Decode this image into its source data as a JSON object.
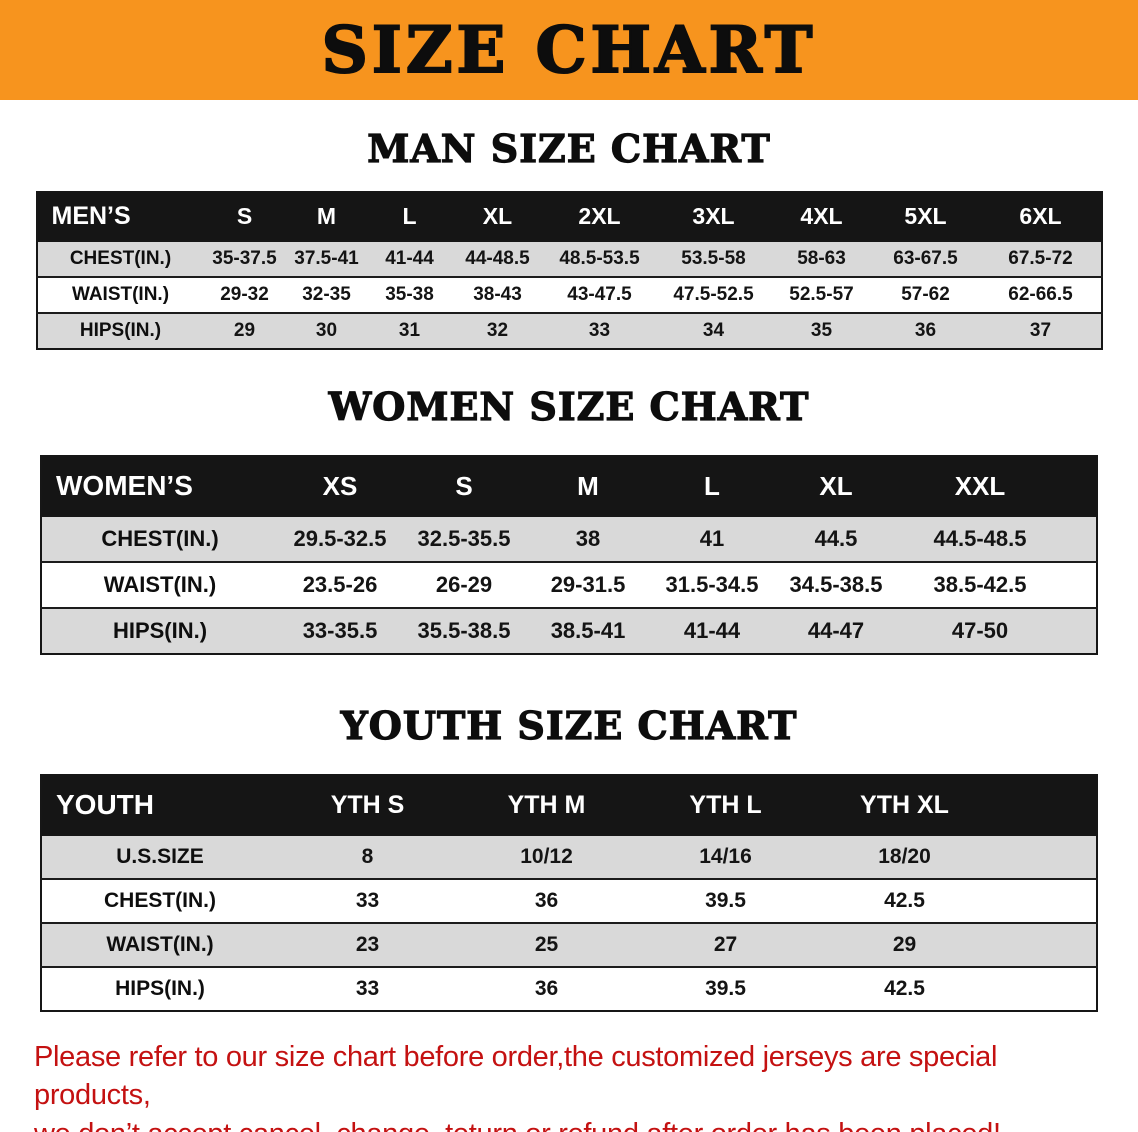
{
  "colors": {
    "banner-bg": "#f7941e",
    "banner-text": "#0d0d0d",
    "table-header-bg": "#151515",
    "table-header-text": "#ffffff",
    "row-stripe": "#d9d9d9",
    "footer-text": "#c41111"
  },
  "banner": {
    "title": "SIZE CHART"
  },
  "sections": [
    {
      "heading": "MAN SIZE CHART",
      "table": {
        "header_label": "MEN’S",
        "columns": [
          "S",
          "M",
          "L",
          "XL",
          "2XL",
          "3XL",
          "4XL",
          "5XL",
          "6XL"
        ],
        "rows": [
          {
            "label": "CHEST(IN.)",
            "values": [
              "35-37.5",
              "37.5-41",
              "41-44",
              "44-48.5",
              "48.5-53.5",
              "53.5-58",
              "58-63",
              "63-67.5",
              "67.5-72"
            ]
          },
          {
            "label": "WAIST(IN.)",
            "values": [
              "29-32",
              "32-35",
              "35-38",
              "38-43",
              "43-47.5",
              "47.5-52.5",
              "52.5-57",
              "57-62",
              "62-66.5"
            ]
          },
          {
            "label": "HIPS(IN.)",
            "values": [
              "29",
              "30",
              "31",
              "32",
              "33",
              "34",
              "35",
              "36",
              "37"
            ]
          }
        ]
      }
    },
    {
      "heading": "WOMEN SIZE CHART",
      "table": {
        "header_label": "WOMEN’S",
        "columns": [
          "XS",
          "S",
          "M",
          "L",
          "XL",
          "XXL"
        ],
        "rows": [
          {
            "label": "CHEST(IN.)",
            "values": [
              "29.5-32.5",
              "32.5-35.5",
              "38",
              "41",
              "44.5",
              "44.5-48.5"
            ]
          },
          {
            "label": "WAIST(IN.)",
            "values": [
              "23.5-26",
              "26-29",
              "29-31.5",
              "31.5-34.5",
              "34.5-38.5",
              "38.5-42.5"
            ]
          },
          {
            "label": "HIPS(IN.)",
            "values": [
              "33-35.5",
              "35.5-38.5",
              "38.5-41",
              "41-44",
              "44-47",
              "47-50"
            ]
          }
        ]
      }
    },
    {
      "heading": "YOUTH SIZE CHART",
      "table": {
        "header_label": "YOUTH",
        "columns": [
          "YTH S",
          "YTH M",
          "YTH L",
          "YTH XL"
        ],
        "rows": [
          {
            "label": "U.S.SIZE",
            "values": [
              "8",
              "10/12",
              "14/16",
              "18/20"
            ]
          },
          {
            "label": "CHEST(IN.)",
            "values": [
              "33",
              "36",
              "39.5",
              "42.5"
            ]
          },
          {
            "label": "WAIST(IN.)",
            "values": [
              "23",
              "25",
              "27",
              "29"
            ]
          },
          {
            "label": "HIPS(IN.)",
            "values": [
              "33",
              "36",
              "39.5",
              "42.5"
            ]
          }
        ]
      }
    }
  ],
  "footer": {
    "line1": "Please refer to our size chart before order,the customized jerseys are special products,",
    "line2": "we don’t accept cancel, change, teturn or refund after order has been placed!"
  },
  "chart_data": [
    {
      "type": "table",
      "title": "MAN SIZE CHART",
      "columns": [
        "MEN’S",
        "S",
        "M",
        "L",
        "XL",
        "2XL",
        "3XL",
        "4XL",
        "5XL",
        "6XL"
      ],
      "rows": [
        [
          "CHEST(IN.)",
          "35-37.5",
          "37.5-41",
          "41-44",
          "44-48.5",
          "48.5-53.5",
          "53.5-58",
          "58-63",
          "63-67.5",
          "67.5-72"
        ],
        [
          "WAIST(IN.)",
          "29-32",
          "32-35",
          "35-38",
          "38-43",
          "43-47.5",
          "47.5-52.5",
          "52.5-57",
          "57-62",
          "62-66.5"
        ],
        [
          "HIPS(IN.)",
          "29",
          "30",
          "31",
          "32",
          "33",
          "34",
          "35",
          "36",
          "37"
        ]
      ]
    },
    {
      "type": "table",
      "title": "WOMEN SIZE CHART",
      "columns": [
        "WOMEN’S",
        "XS",
        "S",
        "M",
        "L",
        "XL",
        "XXL"
      ],
      "rows": [
        [
          "CHEST(IN.)",
          "29.5-32.5",
          "32.5-35.5",
          "38",
          "41",
          "44.5",
          "44.5-48.5"
        ],
        [
          "WAIST(IN.)",
          "23.5-26",
          "26-29",
          "29-31.5",
          "31.5-34.5",
          "34.5-38.5",
          "38.5-42.5"
        ],
        [
          "HIPS(IN.)",
          "33-35.5",
          "35.5-38.5",
          "38.5-41",
          "41-44",
          "44-47",
          "47-50"
        ]
      ]
    },
    {
      "type": "table",
      "title": "YOUTH SIZE CHART",
      "columns": [
        "YOUTH",
        "YTH S",
        "YTH M",
        "YTH L",
        "YTH XL"
      ],
      "rows": [
        [
          "U.S.SIZE",
          "8",
          "10/12",
          "14/16",
          "18/20"
        ],
        [
          "CHEST(IN.)",
          "33",
          "36",
          "39.5",
          "42.5"
        ],
        [
          "WAIST(IN.)",
          "23",
          "25",
          "27",
          "29"
        ],
        [
          "HIPS(IN.)",
          "33",
          "36",
          "39.5",
          "42.5"
        ]
      ]
    }
  ]
}
